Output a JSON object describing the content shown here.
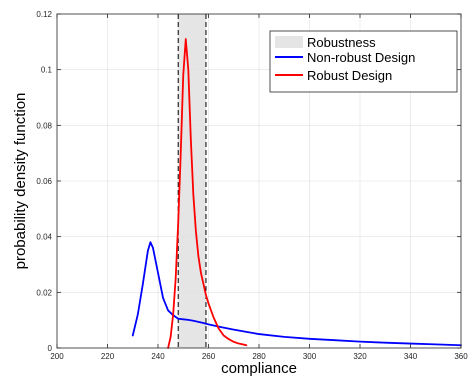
{
  "chart_data": {
    "type": "line",
    "xlabel": "compliance",
    "ylabel": "probability density function",
    "xlim": [
      200,
      360
    ],
    "ylim": [
      0,
      0.12
    ],
    "x_ticks": [
      200,
      220,
      240,
      260,
      280,
      300,
      320,
      340,
      360
    ],
    "y_ticks": [
      0,
      0.02,
      0.04,
      0.06,
      0.08,
      0.1,
      0.12
    ],
    "x_tick_labels": [
      "200",
      "220",
      "240",
      "260",
      "280",
      "300",
      "320",
      "340",
      "360"
    ],
    "y_tick_labels": [
      "0",
      "0.02",
      "0.04",
      "0.06",
      "0.08",
      "0.1",
      "0.12"
    ],
    "grid": true,
    "legend_position": "top-right",
    "robustness_band": {
      "name": "Robustness",
      "x_range": [
        248,
        259
      ],
      "color": "#e5e5e5"
    },
    "series": [
      {
        "name": "Non-robust Design",
        "color": "#0000ff",
        "points": [
          [
            230,
            0.0045
          ],
          [
            232,
            0.012
          ],
          [
            234,
            0.023
          ],
          [
            236,
            0.035
          ],
          [
            237,
            0.038
          ],
          [
            238,
            0.036
          ],
          [
            240,
            0.027
          ],
          [
            242,
            0.018
          ],
          [
            244,
            0.0135
          ],
          [
            246,
            0.0118
          ],
          [
            248,
            0.0105
          ],
          [
            250,
            0.0103
          ],
          [
            252,
            0.0101
          ],
          [
            254,
            0.0098
          ],
          [
            256,
            0.0094
          ],
          [
            258,
            0.009
          ],
          [
            260,
            0.0085
          ],
          [
            265,
            0.0075
          ],
          [
            270,
            0.0066
          ],
          [
            275,
            0.0058
          ],
          [
            280,
            0.005
          ],
          [
            290,
            0.004
          ],
          [
            300,
            0.0033
          ],
          [
            310,
            0.0028
          ],
          [
            320,
            0.0023
          ],
          [
            330,
            0.0019
          ],
          [
            340,
            0.0016
          ],
          [
            350,
            0.0013
          ],
          [
            360,
            0.001
          ]
        ]
      },
      {
        "name": "Robust Design",
        "color": "#ff0000",
        "points": [
          [
            244,
            0.0
          ],
          [
            245,
            0.004
          ],
          [
            246,
            0.012
          ],
          [
            247,
            0.025
          ],
          [
            248,
            0.045
          ],
          [
            249,
            0.07
          ],
          [
            250,
            0.098
          ],
          [
            251,
            0.111
          ],
          [
            252,
            0.1
          ],
          [
            253,
            0.075
          ],
          [
            254,
            0.055
          ],
          [
            255,
            0.042
          ],
          [
            256,
            0.033
          ],
          [
            257,
            0.027
          ],
          [
            258,
            0.023
          ],
          [
            259,
            0.019
          ],
          [
            260,
            0.016
          ],
          [
            262,
            0.011
          ],
          [
            264,
            0.007
          ],
          [
            266,
            0.0045
          ],
          [
            268,
            0.0032
          ],
          [
            270,
            0.0022
          ],
          [
            272,
            0.0016
          ],
          [
            274,
            0.0012
          ],
          [
            275,
            0.001
          ]
        ]
      }
    ]
  }
}
